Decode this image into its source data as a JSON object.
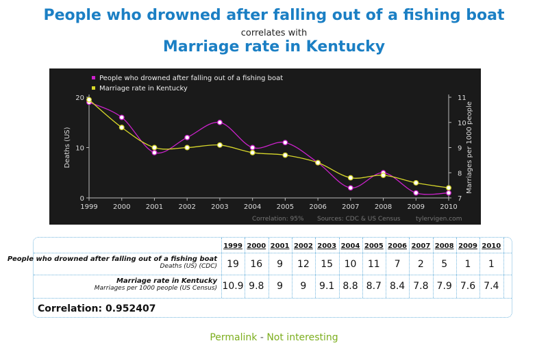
{
  "header": {
    "title": "People who drowned after falling out of a fishing boat",
    "connector": "correlates with",
    "title2": "Marriage rate in Kentucky"
  },
  "chart_data": {
    "type": "line",
    "x": [
      "1999",
      "2000",
      "2001",
      "2002",
      "2003",
      "2004",
      "2005",
      "2006",
      "2007",
      "2008",
      "2009",
      "2010"
    ],
    "series": [
      {
        "name": "People who drowned after falling out of a fishing boat",
        "values": [
          19,
          16,
          9,
          12,
          15,
          10,
          11,
          7,
          2,
          5,
          1,
          1
        ],
        "axis": "left",
        "color": "#cc22cc"
      },
      {
        "name": "Marriage rate in Kentucky",
        "values": [
          10.9,
          9.8,
          9,
          9,
          9.1,
          8.8,
          8.7,
          8.4,
          7.8,
          7.9,
          7.6,
          7.4
        ],
        "axis": "right",
        "color": "#d8d82a"
      }
    ],
    "ylabel_left": "Deaths (US)",
    "ylabel_right": "Marriages per 1000 people",
    "ylim_left": [
      0,
      20
    ],
    "yticks_left": [
      "0",
      "10",
      "20"
    ],
    "ylim_right": [
      7,
      11
    ],
    "yticks_right": [
      "7",
      "8",
      "9",
      "10",
      "11"
    ],
    "footnote": {
      "correlation": "Correlation: 95%",
      "sources": "Sources: CDC & US Census",
      "site": "tylervigen.com"
    },
    "legend_position": "top-left",
    "background": "#1a1a1a"
  },
  "table": {
    "years": [
      "1999",
      "2000",
      "2001",
      "2002",
      "2003",
      "2004",
      "2005",
      "2006",
      "2007",
      "2008",
      "2009",
      "2010"
    ],
    "rows": [
      {
        "label": "People who drowned after falling out of a fishing boat",
        "sublabel": "Deaths (US) (CDC)",
        "values": [
          "19",
          "16",
          "9",
          "12",
          "15",
          "10",
          "11",
          "7",
          "2",
          "5",
          "1",
          "1"
        ]
      },
      {
        "label": "Marriage rate in Kentucky",
        "sublabel": "Marriages per 1000 people (US Census)",
        "values": [
          "10.9",
          "9.8",
          "9",
          "9",
          "9.1",
          "8.8",
          "8.7",
          "8.4",
          "7.8",
          "7.9",
          "7.6",
          "7.4"
        ]
      }
    ],
    "correlation": "Correlation: 0.952407"
  },
  "footer": {
    "permalink": "Permalink",
    "separator": "-",
    "not_interesting": "Not interesting"
  }
}
